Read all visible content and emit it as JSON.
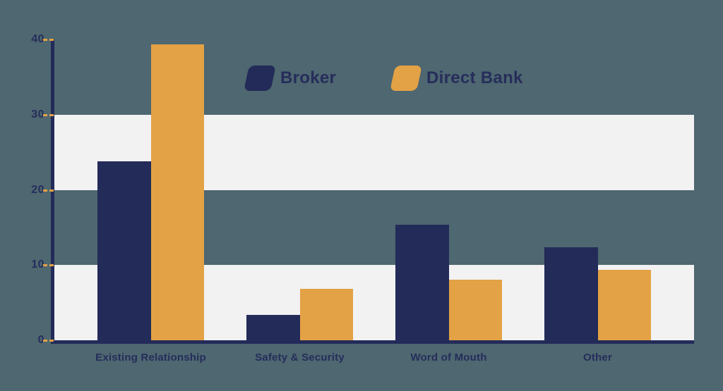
{
  "chart_data": {
    "type": "bar",
    "title": "",
    "xlabel": "",
    "ylabel": "",
    "categories": [
      "Existing Relationship",
      "Safety & Security",
      "Word of Mouth",
      "Other"
    ],
    "series": [
      {
        "name": "Broker",
        "color": "#232b59",
        "values": [
          23.8,
          3.4,
          15.4,
          12.4
        ]
      },
      {
        "name": "Direct Bank",
        "color": "#e3a245",
        "values": [
          39.3,
          6.8,
          8.1,
          9.4
        ]
      }
    ],
    "ylim": [
      0,
      40
    ],
    "yticks": [
      0,
      10,
      20,
      30,
      40
    ],
    "grid": "alternating-horizontal-stripes",
    "stripe_ranges": [
      [
        20,
        30
      ],
      [
        0,
        10
      ]
    ],
    "legend_position": "top-center"
  },
  "legend": {
    "items": [
      {
        "label": "Broker",
        "color": "#232b59"
      },
      {
        "label": "Direct Bank",
        "color": "#e3a245"
      }
    ]
  },
  "colors": {
    "background": "#4e6770",
    "stripe": "#f2f2f3",
    "axis": "#232b59",
    "tick_dash": "#e3a245",
    "text": "#262d5b"
  }
}
